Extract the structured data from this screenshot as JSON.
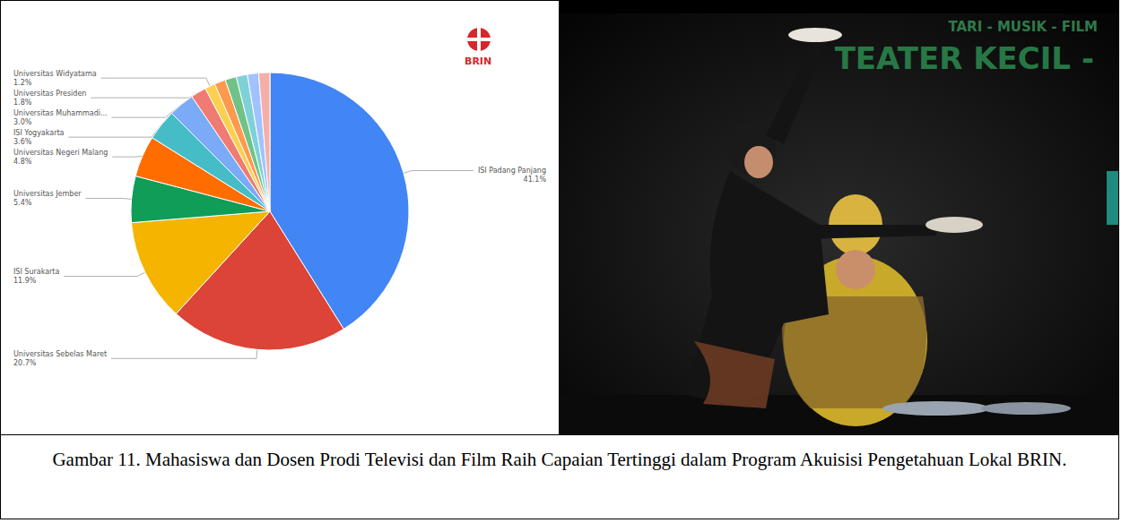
{
  "chart_data": {
    "type": "pie",
    "categories": [
      "ISI Padang Panjang",
      "Universitas Sebelas Maret",
      "ISI Surakarta",
      "Universitas Jember",
      "Universitas Negeri Malang",
      "ISI Yogyakarta",
      "Universitas Muhammadi...",
      "Universitas Presiden",
      "Universitas Widyatama",
      null,
      null,
      null,
      null,
      null
    ],
    "values": [
      41.1,
      20.7,
      11.9,
      5.4,
      4.8,
      3.6,
      3.0,
      1.8,
      1.2,
      1.3,
      1.3,
      1.3,
      1.3,
      1.3
    ],
    "value_labels": [
      "41.1%",
      "20.7%",
      "11.9%",
      "5.4%",
      "4.8%",
      "3.6%",
      "3.0%",
      "1.8%",
      "1.2%",
      null,
      null,
      null,
      null,
      null
    ],
    "colors": [
      "#4285f4",
      "#db4437",
      "#f4b400",
      "#0f9d58",
      "#ff6d01",
      "#46bdc6",
      "#7baaf7",
      "#f07b72",
      "#fcd04f",
      "#ff994d",
      "#71c287",
      "#7ed1d7",
      "#a0c3ff",
      "#f6aea9"
    ],
    "data_labels": true
  },
  "logo": {
    "text": "BRIN"
  },
  "photo": {
    "texts": [
      "TARI - MUSIK - FILM",
      "TEATER KECIL -"
    ]
  },
  "caption": "Gambar 11. Mahasiswa dan Dosen Prodi Televisi dan Film Raih Capaian Tertinggi dalam Program Akuisisi Pengetahuan Lokal BRIN."
}
